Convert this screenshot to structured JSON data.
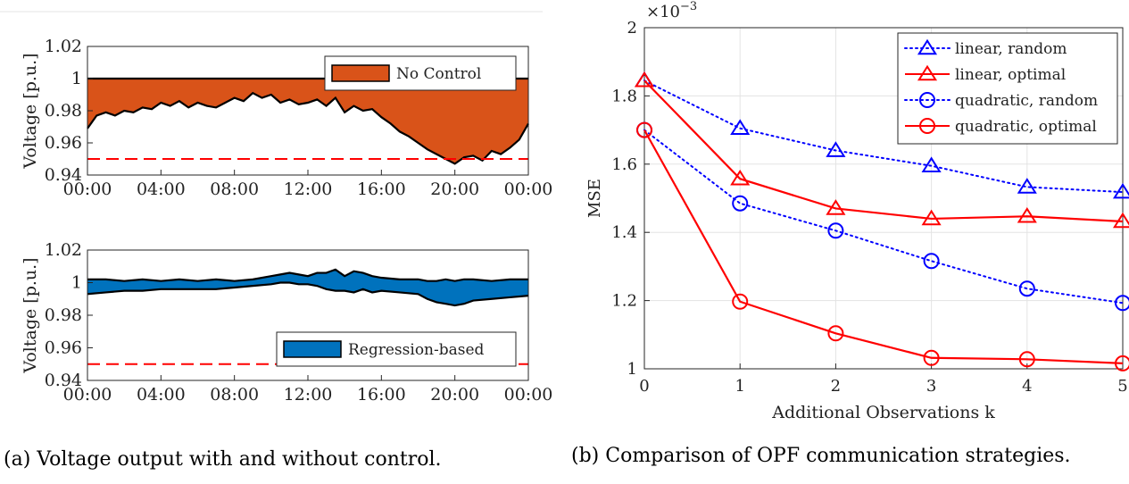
{
  "captions": {
    "a": "(a) Voltage output with and without control.",
    "b": "(b) Comparison of OPF communication strategies."
  },
  "chart_data": [
    {
      "type": "area",
      "panel": "a-top",
      "ylabel": "Voltage [p.u.]",
      "ylim": [
        0.94,
        1.02
      ],
      "yticks": [
        "0.94",
        "0.96",
        "0.98",
        "1",
        "1.02"
      ],
      "yticks_values": [
        0.94,
        0.96,
        0.98,
        1.0,
        1.02
      ],
      "xticks": [
        "00:00",
        "04:00",
        "08:00",
        "12:00",
        "16:00",
        "20:00",
        "00:00"
      ],
      "xlim": [
        0,
        24
      ],
      "legend": {
        "label": "No Control",
        "position": "top-right"
      },
      "fill_color": "#D95319",
      "limit_line": {
        "value": 0.95,
        "color": "#ff0000",
        "style": "dashed"
      },
      "band_upper": 1.0,
      "x": [
        0,
        0.5,
        1,
        1.5,
        2,
        2.5,
        3,
        3.5,
        4,
        4.5,
        5,
        5.5,
        6,
        6.5,
        7,
        7.5,
        8,
        8.5,
        9,
        9.5,
        10,
        10.5,
        11,
        11.5,
        12,
        12.5,
        13,
        13.5,
        14,
        14.5,
        15,
        15.5,
        16,
        16.5,
        17,
        17.5,
        18,
        18.5,
        19,
        19.5,
        20,
        20.5,
        21,
        21.5,
        22,
        22.5,
        23,
        23.5,
        24
      ],
      "values": [
        0.969,
        0.977,
        0.979,
        0.977,
        0.98,
        0.979,
        0.982,
        0.981,
        0.985,
        0.983,
        0.986,
        0.982,
        0.985,
        0.983,
        0.982,
        0.985,
        0.988,
        0.986,
        0.991,
        0.988,
        0.99,
        0.985,
        0.987,
        0.984,
        0.985,
        0.987,
        0.983,
        0.988,
        0.979,
        0.983,
        0.98,
        0.981,
        0.976,
        0.972,
        0.967,
        0.964,
        0.96,
        0.956,
        0.953,
        0.95,
        0.947,
        0.951,
        0.952,
        0.949,
        0.955,
        0.953,
        0.957,
        0.962,
        0.972
      ]
    },
    {
      "type": "area",
      "panel": "a-bottom",
      "ylabel": "Voltage [p.u.]",
      "ylim": [
        0.94,
        1.02
      ],
      "yticks": [
        "0.94",
        "0.96",
        "0.98",
        "1",
        "1.02"
      ],
      "yticks_values": [
        0.94,
        0.96,
        0.98,
        1.0,
        1.02
      ],
      "xticks": [
        "00:00",
        "04:00",
        "08:00",
        "12:00",
        "16:00",
        "20:00",
        "00:00"
      ],
      "xlim": [
        0,
        24
      ],
      "legend": {
        "label": "Regression-based",
        "position": "bottom-right"
      },
      "fill_color": "#0072BD",
      "limit_line": {
        "value": 0.95,
        "color": "#ff0000",
        "style": "dashed"
      },
      "x": [
        0,
        1,
        2,
        3,
        4,
        5,
        6,
        7,
        8,
        9,
        10,
        10.5,
        11,
        11.5,
        12,
        12.5,
        13,
        13.5,
        14,
        14.5,
        15,
        15.5,
        16,
        17,
        18,
        18.5,
        19,
        19.5,
        20,
        20.5,
        21,
        22,
        23,
        24
      ],
      "upper": [
        1.002,
        1.002,
        1.001,
        1.002,
        1.001,
        1.002,
        1.001,
        1.002,
        1.001,
        1.002,
        1.004,
        1.005,
        1.006,
        1.005,
        1.004,
        1.006,
        1.006,
        1.008,
        1.004,
        1.007,
        1.006,
        1.004,
        1.003,
        1.002,
        1.002,
        1.001,
        1.001,
        1.002,
        1.001,
        1.002,
        1.002,
        1.001,
        1.002,
        1.002
      ],
      "lower": [
        0.993,
        0.994,
        0.995,
        0.995,
        0.996,
        0.996,
        0.996,
        0.996,
        0.997,
        0.998,
        0.999,
        1.0,
        1.0,
        0.999,
        0.999,
        0.998,
        0.996,
        0.995,
        0.995,
        0.994,
        0.996,
        0.994,
        0.995,
        0.994,
        0.993,
        0.99,
        0.988,
        0.987,
        0.986,
        0.987,
        0.989,
        0.99,
        0.991,
        0.992
      ]
    },
    {
      "type": "line",
      "panel": "b",
      "xlabel": "Additional Observations k",
      "ylabel": "MSE",
      "exponent_label": "×10",
      "exponent_power": "−3",
      "xlim": [
        0,
        5
      ],
      "ylim": [
        1.0,
        2.0
      ],
      "xticks": [
        "0",
        "1",
        "2",
        "3",
        "4",
        "5"
      ],
      "yticks": [
        "1",
        "1.2",
        "1.4",
        "1.6",
        "1.8",
        "2"
      ],
      "yticks_values": [
        1.0,
        1.2,
        1.4,
        1.6,
        1.8,
        2.0
      ],
      "grid": true,
      "legend_position": "top-right",
      "x": [
        0,
        1,
        2,
        3,
        4,
        5
      ],
      "series": [
        {
          "name": "linear, random",
          "marker": "triangle",
          "style": "dotted",
          "color": "#0000ff",
          "values": [
            1.845,
            1.705,
            1.64,
            1.595,
            1.533,
            1.518
          ]
        },
        {
          "name": "linear, optimal",
          "marker": "triangle",
          "style": "solid",
          "color": "#ff0000",
          "values": [
            1.845,
            1.557,
            1.47,
            1.44,
            1.447,
            1.432
          ]
        },
        {
          "name": "quadratic, random",
          "marker": "circle",
          "style": "dotted",
          "color": "#0000ff",
          "values": [
            1.7,
            1.485,
            1.405,
            1.316,
            1.235,
            1.193
          ]
        },
        {
          "name": "quadratic, optimal",
          "marker": "circle",
          "style": "solid",
          "color": "#ff0000",
          "values": [
            1.7,
            1.197,
            1.104,
            1.032,
            1.028,
            1.016
          ]
        }
      ]
    }
  ]
}
